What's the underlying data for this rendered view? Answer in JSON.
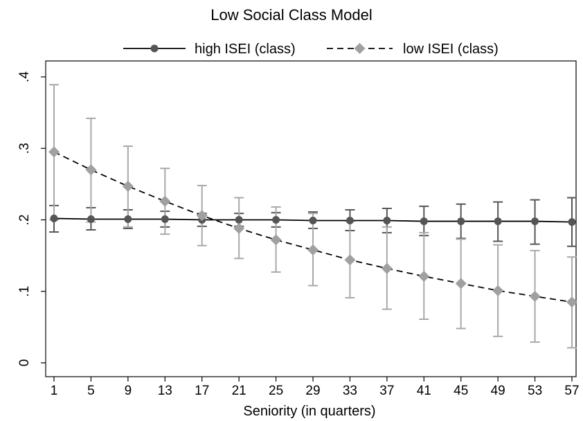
{
  "chart_data": {
    "type": "line",
    "title": "Low Social Class Model",
    "xlabel": "Seniority (in quarters)",
    "ylabel": "",
    "x": [
      1,
      5,
      9,
      13,
      17,
      21,
      25,
      29,
      33,
      37,
      41,
      45,
      49,
      53,
      57
    ],
    "xticks": [
      "1",
      "5",
      "9",
      "13",
      "17",
      "21",
      "25",
      "29",
      "33",
      "37",
      "41",
      "45",
      "49",
      "53",
      "57"
    ],
    "ylim": [
      0,
      0.4
    ],
    "yticks": [
      {
        "value": 0,
        "label": "0"
      },
      {
        "value": 0.1,
        "label": ".1"
      },
      {
        "value": 0.2,
        "label": ".2"
      },
      {
        "value": 0.3,
        "label": ".3"
      },
      {
        "value": 0.4,
        "label": ".4"
      }
    ],
    "grid": false,
    "legend_position": "top",
    "series": [
      {
        "name": "high ISEI (class)",
        "color": "#555555",
        "errorbar_color": "#555555",
        "line_style": "solid",
        "marker": "circle",
        "values": [
          0.202,
          0.201,
          0.201,
          0.201,
          0.2,
          0.2,
          0.2,
          0.199,
          0.199,
          0.199,
          0.198,
          0.198,
          0.198,
          0.198,
          0.197
        ],
        "ci_lower": [
          0.183,
          0.186,
          0.188,
          0.19,
          0.191,
          0.191,
          0.19,
          0.188,
          0.185,
          0.182,
          0.178,
          0.174,
          0.17,
          0.166,
          0.163
        ],
        "ci_upper": [
          0.22,
          0.217,
          0.214,
          0.212,
          0.209,
          0.209,
          0.21,
          0.211,
          0.214,
          0.216,
          0.219,
          0.222,
          0.225,
          0.228,
          0.231
        ]
      },
      {
        "name": "low ISEI (class)",
        "color": "#a0a0a0",
        "errorbar_color": "#a8a8a8",
        "line_style": "dashed",
        "marker": "diamond",
        "values": [
          0.295,
          0.27,
          0.247,
          0.226,
          0.206,
          0.188,
          0.172,
          0.158,
          0.144,
          0.132,
          0.121,
          0.111,
          0.101,
          0.093,
          0.085
        ],
        "ci_lower": [
          0.2,
          0.197,
          0.19,
          0.18,
          0.164,
          0.146,
          0.127,
          0.108,
          0.091,
          0.075,
          0.061,
          0.048,
          0.037,
          0.029,
          0.021
        ],
        "ci_upper": [
          0.389,
          0.342,
          0.303,
          0.272,
          0.248,
          0.231,
          0.218,
          0.209,
          0.198,
          0.19,
          0.182,
          0.173,
          0.165,
          0.157,
          0.148
        ]
      }
    ]
  }
}
